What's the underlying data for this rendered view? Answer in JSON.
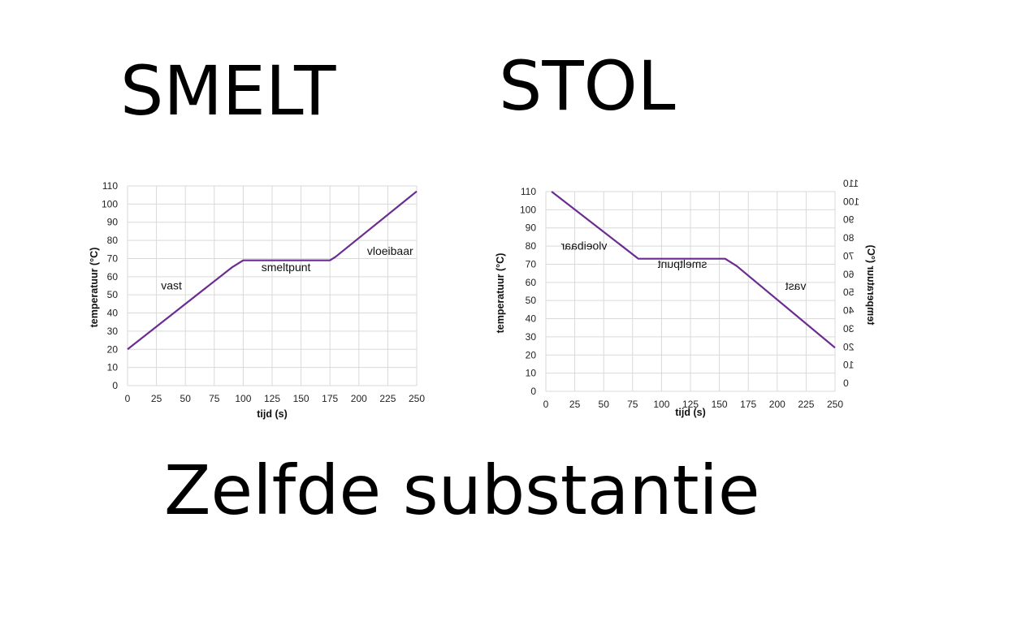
{
  "titles": {
    "smelt": "SMELT",
    "stol": "STOL",
    "bottom": "Zelfde substantie"
  },
  "colors": {
    "line": "#6a2c91",
    "grid": "#d9d9d9"
  },
  "chart_data": [
    {
      "type": "line",
      "title": "SMELT",
      "xlabel": "tijd (s)",
      "ylabel": "temperatuur (°C)",
      "xlim": [
        0,
        250
      ],
      "ylim": [
        0,
        110
      ],
      "x_ticks": [
        "0",
        "25",
        "50",
        "75",
        "100",
        "125",
        "150",
        "175",
        "200",
        "225",
        "250"
      ],
      "y_ticks": [
        "0",
        "10",
        "20",
        "30",
        "40",
        "50",
        "60",
        "70",
        "80",
        "90",
        "100",
        "110"
      ],
      "grid": true,
      "series": [
        {
          "x": [
            0,
            90,
            100,
            175,
            180,
            250
          ],
          "y": [
            20,
            65,
            69,
            69,
            71,
            107
          ]
        }
      ],
      "annotations": [
        {
          "text": "vast",
          "x": 38,
          "y": 53
        },
        {
          "text": "smeltpunt",
          "x": 137,
          "y": 63
        },
        {
          "text": "vloeibaar",
          "x": 227,
          "y": 72
        }
      ]
    },
    {
      "type": "line",
      "title": "STOL",
      "xlabel": "tijd (s)",
      "ylabel": "temperatuur (°C)",
      "xlim": [
        0,
        250
      ],
      "ylim": [
        0,
        110
      ],
      "x_ticks": [
        "0",
        "25",
        "50",
        "75",
        "100",
        "125",
        "150",
        "175",
        "200",
        "225",
        "250"
      ],
      "y_ticks": [
        "0",
        "10",
        "20",
        "30",
        "40",
        "50",
        "60",
        "70",
        "80",
        "90",
        "100",
        "110"
      ],
      "grid": true,
      "mirrored_copy_on_right": true,
      "series": [
        {
          "x": [
            5,
            80,
            155,
            165,
            250
          ],
          "y": [
            110,
            73,
            73,
            69,
            24
          ]
        }
      ],
      "annotations": [
        {
          "text": "vloeibaar",
          "x": 33,
          "y": 78,
          "mirrored": true
        },
        {
          "text": "smeltpunt",
          "x": 118,
          "y": 68,
          "mirrored": true
        },
        {
          "text": "vast",
          "x": 216,
          "y": 56,
          "mirrored": true
        }
      ]
    }
  ]
}
